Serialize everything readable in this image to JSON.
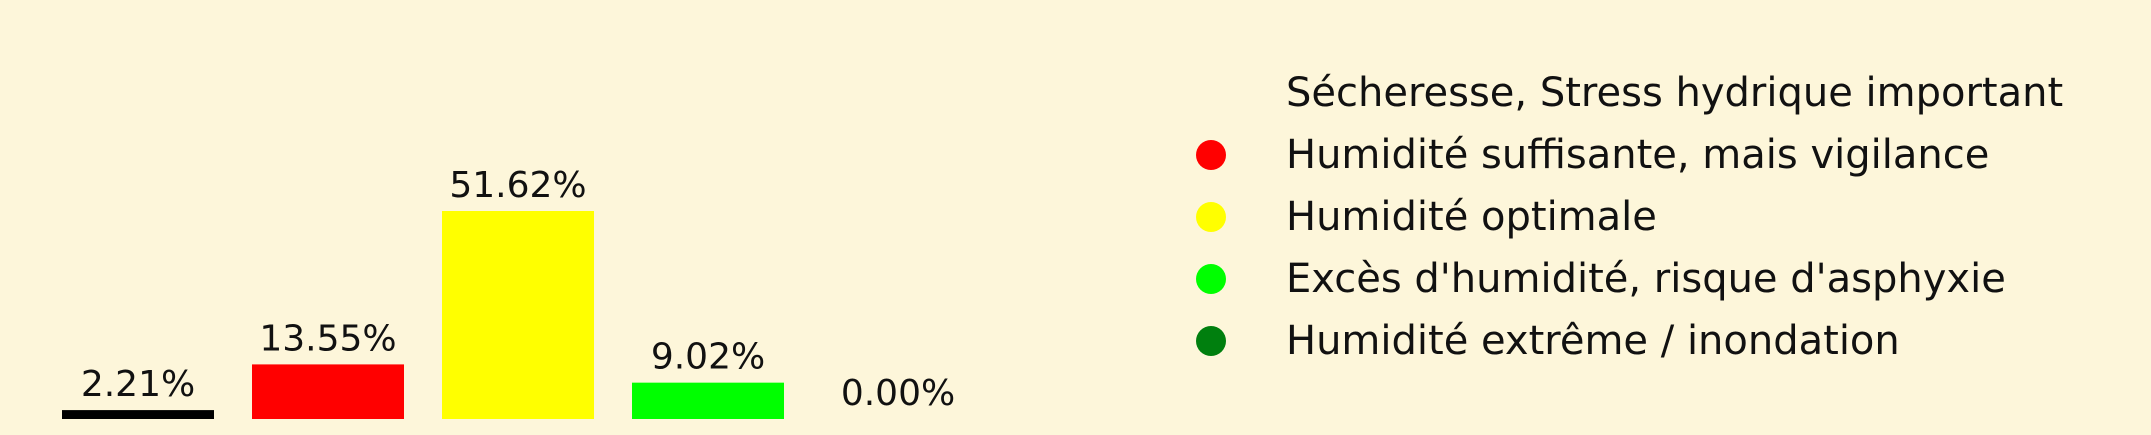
{
  "chart_data": {
    "type": "bar",
    "categories": [
      "Sécheresse, Stress hydrique important",
      "Humidité suffisante, mais vigilance",
      "Humidité optimale",
      "Excès d'humidité, risque d'asphyxie",
      "Humidité extrême / inondation"
    ],
    "values": [
      2.21,
      13.55,
      51.62,
      9.02,
      0.0
    ],
    "data_labels": [
      "2.21%",
      "13.55%",
      "51.62%",
      "9.02%",
      "0.00%"
    ],
    "colors": [
      "#000000",
      "#ff0000",
      "#ffff00",
      "#00ff00",
      "#007f0e"
    ],
    "ylim": [
      0,
      51.62
    ],
    "grid": false,
    "axes_visible": false,
    "legend": {
      "placement": "right",
      "marker": "circle",
      "entries": [
        "Sécheresse, Stress hydrique important",
        "Humidité suffisante, mais vigilance",
        "Humidité optimale",
        "Excès d'humidité, risque d'asphyxie",
        "Humidité extrême / inondation"
      ]
    }
  },
  "background_color": "#fdf6da"
}
